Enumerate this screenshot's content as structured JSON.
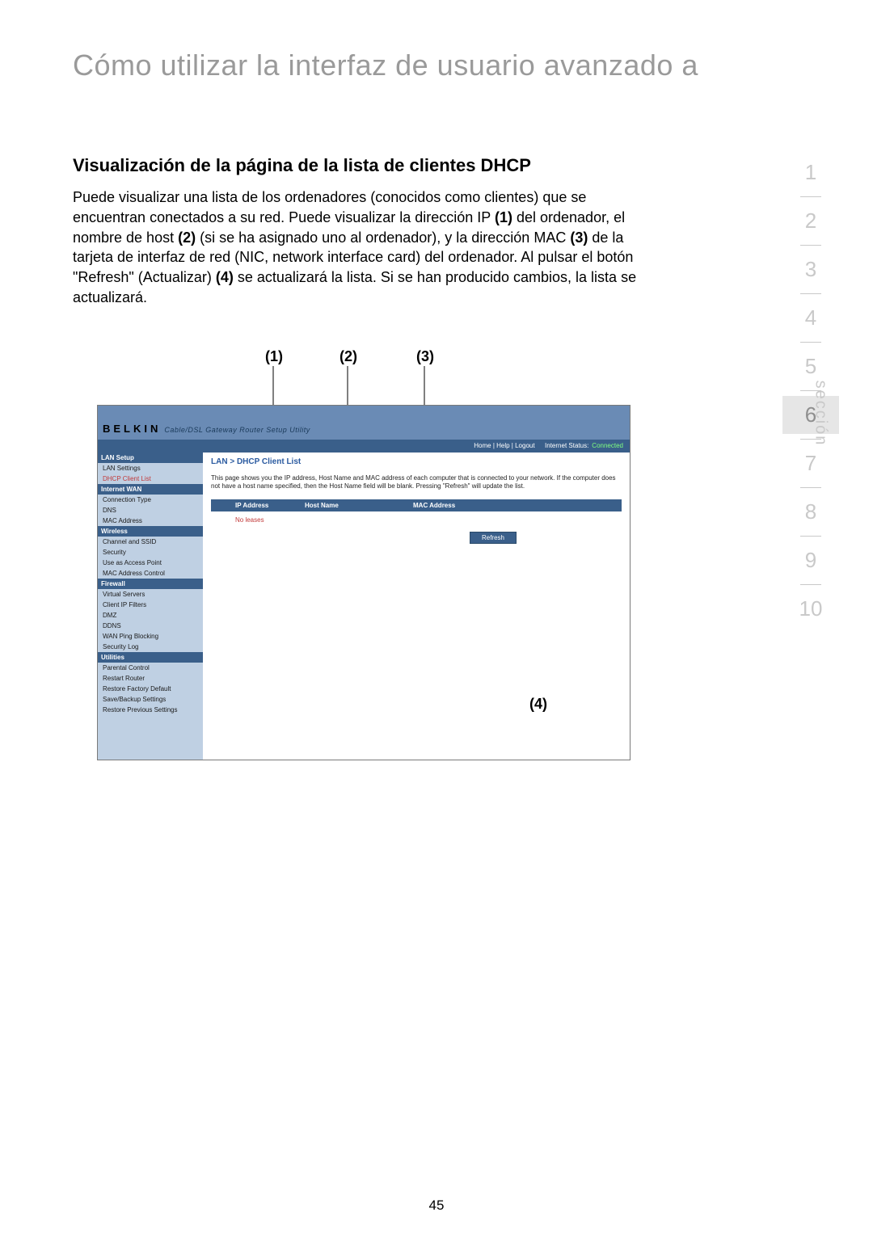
{
  "page": {
    "title": "Cómo utilizar la interfaz de usuario avanzado a",
    "subtitle": "Visualización de la página de la lista de clientes DHCP",
    "body_html": "Puede visualizar una lista de los ordenadores (conocidos como clientes) que se encuentran conectados a su red. Puede visualizar la dirección IP <b>(1)</b> del ordenador, el nombre de host <b>(2)</b> (si se ha asignado uno al ordenador), y la dirección MAC <b>(3)</b> de la tarjeta de interfaz de red (NIC, network interface card) del ordenador. Al pulsar el botón \"Refresh\" (Actualizar) <b>(4)</b> se actualizará la lista. Si se han producido cambios, la lista se actualizará.",
    "page_number": "45"
  },
  "section_nav": {
    "label": "sección",
    "items": [
      "1",
      "2",
      "3",
      "4",
      "5",
      "6",
      "7",
      "8",
      "9",
      "10"
    ],
    "active_index": 5
  },
  "callouts": {
    "c1": "(1)",
    "c2": "(2)",
    "c3": "(3)",
    "c4": "(4)"
  },
  "screenshot": {
    "brand": "BELKIN",
    "brand_sub": "Cable/DSL Gateway Router Setup Utility",
    "topbar": {
      "links": "Home | Help | Logout",
      "status_label": "Internet Status:",
      "status_value": "Connected"
    },
    "sidebar": [
      {
        "type": "head",
        "label": "LAN Setup"
      },
      {
        "type": "item",
        "label": "LAN Settings"
      },
      {
        "type": "item",
        "label": "DHCP Client List",
        "red": true
      },
      {
        "type": "head",
        "label": "Internet WAN"
      },
      {
        "type": "item",
        "label": "Connection Type"
      },
      {
        "type": "item",
        "label": "DNS"
      },
      {
        "type": "item",
        "label": "MAC Address"
      },
      {
        "type": "head",
        "label": "Wireless"
      },
      {
        "type": "item",
        "label": "Channel and SSID"
      },
      {
        "type": "item",
        "label": "Security"
      },
      {
        "type": "item",
        "label": "Use as Access Point"
      },
      {
        "type": "item",
        "label": "MAC Address Control"
      },
      {
        "type": "head",
        "label": "Firewall"
      },
      {
        "type": "item",
        "label": "Virtual Servers"
      },
      {
        "type": "item",
        "label": "Client IP Filters"
      },
      {
        "type": "item",
        "label": "DMZ"
      },
      {
        "type": "item",
        "label": "DDNS"
      },
      {
        "type": "item",
        "label": "WAN Ping Blocking"
      },
      {
        "type": "item",
        "label": "Security Log"
      },
      {
        "type": "head",
        "label": "Utilities"
      },
      {
        "type": "item",
        "label": "Parental Control"
      },
      {
        "type": "item",
        "label": "Restart Router"
      },
      {
        "type": "item",
        "label": "Restore Factory Default"
      },
      {
        "type": "item",
        "label": "Save/Backup Settings"
      },
      {
        "type": "item",
        "label": "Restore Previous Settings"
      }
    ],
    "breadcrumb": "LAN > DHCP Client List",
    "description": "This page shows you the IP address, Host Name and MAC address of each computer that is connected to your network. If the computer does not have a host name specified, then the Host Name field will be blank. Pressing \"Refresh\" will update the list.",
    "table": {
      "columns": [
        "IP Address",
        "Host Name",
        "MAC Address"
      ],
      "no_leases": "No leases"
    },
    "refresh_label": "Refresh"
  }
}
